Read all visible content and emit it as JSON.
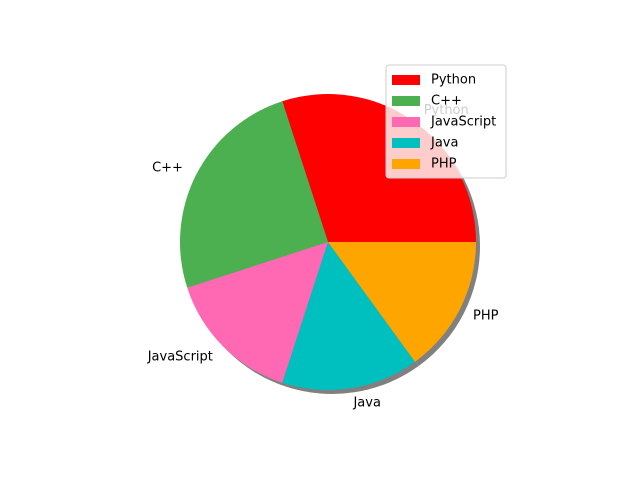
{
  "chart_data": {
    "type": "pie",
    "categories": [
      "Python",
      "C++",
      "JavaScript",
      "Java",
      "PHP"
    ],
    "values": [
      30,
      25,
      15,
      15,
      15
    ],
    "colors": [
      "#ff0000",
      "#4caf50",
      "#ff69b4",
      "#00bfbf",
      "#ffa500"
    ],
    "start_angle_deg": 0,
    "shadow": true,
    "legend": {
      "entries": [
        "Python",
        "C++",
        "JavaScript",
        "Java",
        "PHP"
      ],
      "placement": "upper right"
    }
  }
}
